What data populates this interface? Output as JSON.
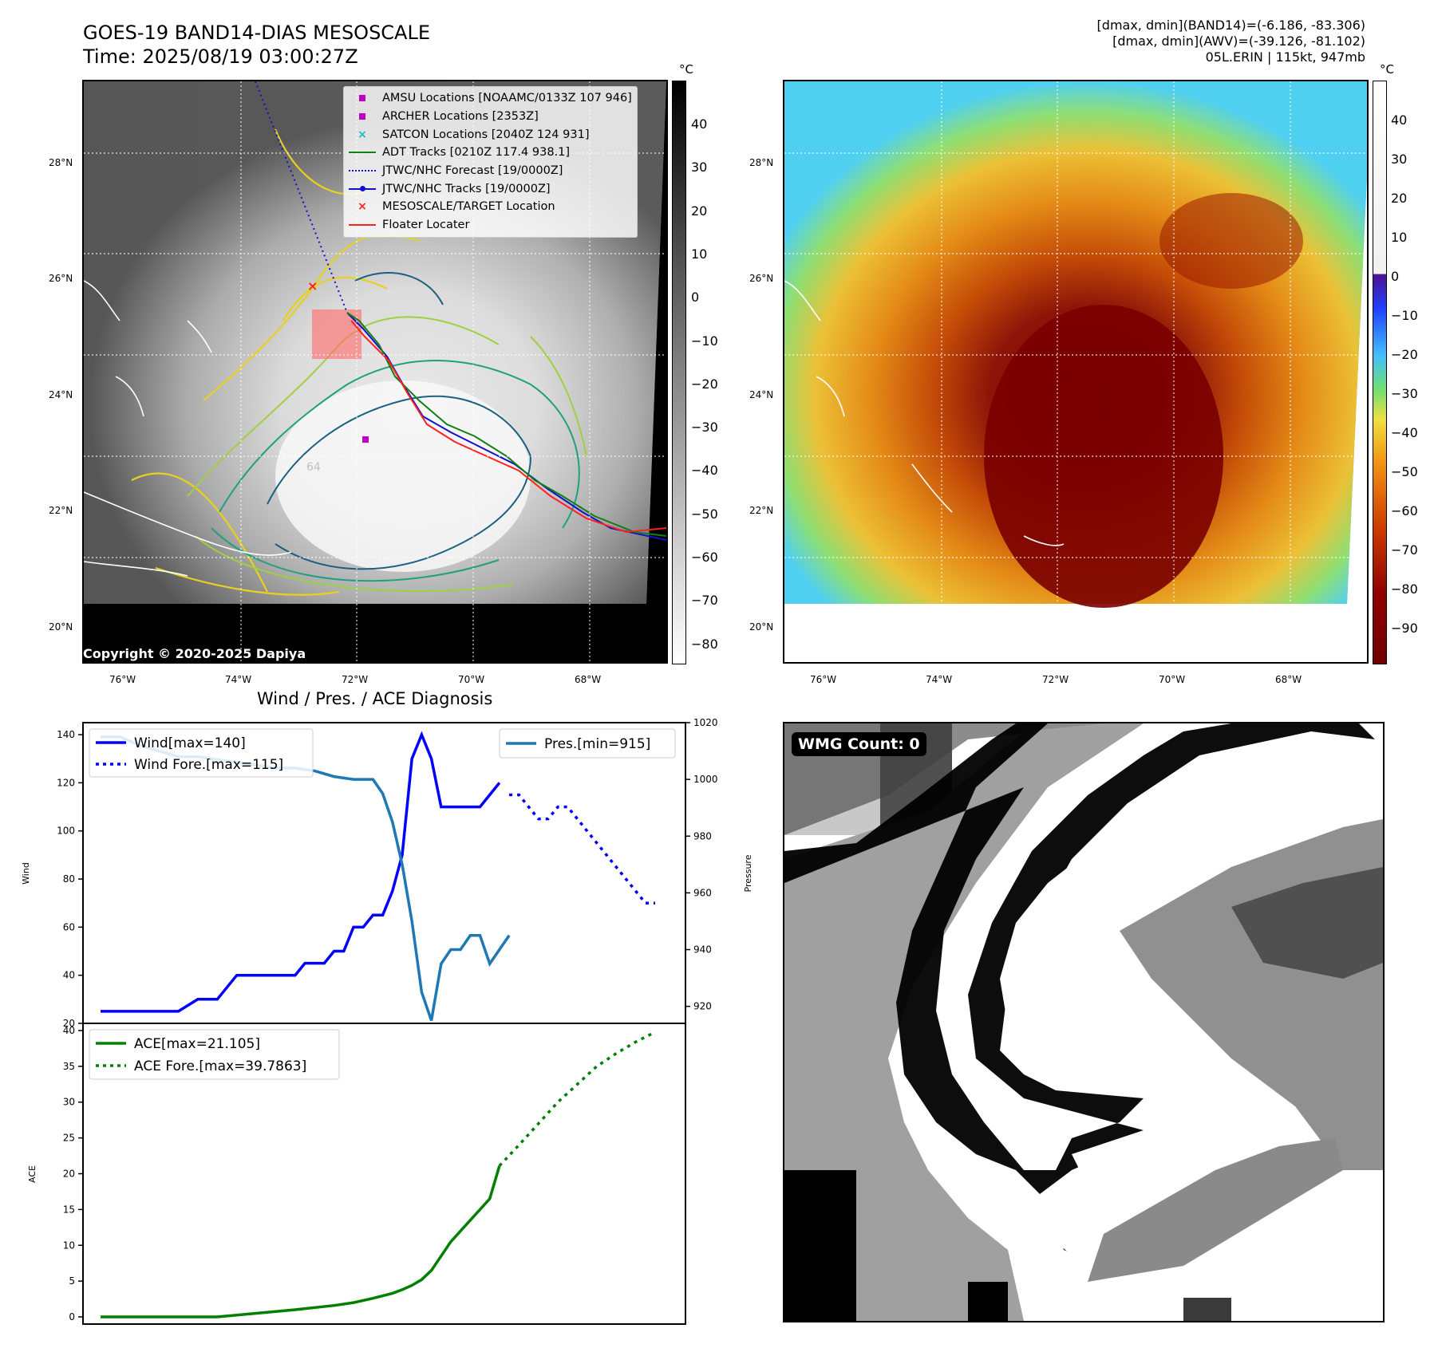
{
  "header": {
    "title_line1": "GOES-19 BAND14-DIAS MESOSCALE",
    "title_line2": "Time: 2025/08/19 03:00:27Z",
    "stats_line1": "[dmax, dmin](BAND14)=(-6.186, -83.306)",
    "stats_line2": "[dmax, dmin](AWV)=(-39.126, -81.102)",
    "stats_line3": "05L.ERIN | 115kt, 947mb"
  },
  "map": {
    "lat_labels": [
      "28°N",
      "26°N",
      "24°N",
      "22°N",
      "20°N"
    ],
    "lon_labels": [
      "76°W",
      "74°W",
      "72°W",
      "70°W",
      "68°W"
    ],
    "copyright": "Copyright © 2020-2025 Dapiya",
    "colorbar_unit": "°C",
    "gray_colorbar_ticks": [
      "40",
      "30",
      "20",
      "10",
      "0",
      "−10",
      "−20",
      "−30",
      "−40",
      "−50",
      "−60",
      "−70",
      "−80"
    ],
    "color_colorbar_ticks": [
      "40",
      "30",
      "20",
      "10",
      "0",
      "−10",
      "−20",
      "−30",
      "−40",
      "−50",
      "−60",
      "−70",
      "−80",
      "−90"
    ],
    "legend": [
      {
        "label": "AMSU Locations [NOAAMC/0133Z 107 946]",
        "symbol": "square",
        "color": "#c000c0"
      },
      {
        "label": "ARCHER Locations [2353Z]",
        "symbol": "square",
        "color": "#c000c0"
      },
      {
        "label": "SATCON Locations [2040Z 124 931]",
        "symbol": "x",
        "color": "#10c0c0"
      },
      {
        "label": "ADT Tracks [0210Z 117.4 938.1]",
        "symbol": "line",
        "color": "#108010"
      },
      {
        "label": "JTWC/NHC Forecast [19/0000Z]",
        "symbol": "dotted",
        "color": "#1010d0"
      },
      {
        "label": "JTWC/NHC Tracks [19/0000Z]",
        "symbol": "line-dot",
        "color": "#1010d0"
      },
      {
        "label": "MESOSCALE/TARGET Location",
        "symbol": "x",
        "color": "#ff2020"
      },
      {
        "label": "Floater Locater",
        "symbol": "line",
        "color": "#ff2020"
      }
    ],
    "contour_label": "64"
  },
  "diagnosis": {
    "title": "Wind / Pres. / ACE Diagnosis",
    "wind_ylabel": "Wind",
    "pres_ylabel": "Pressure",
    "ace_ylabel": "ACE",
    "wind_legend": "Wind[max=140]",
    "wind_fore_legend": "Wind Fore.[max=115]",
    "pres_legend": "Pres.[min=915]",
    "ace_legend": "ACE[max=21.105]",
    "ace_fore_legend": "ACE Fore.[max=39.7863]",
    "wmg": "WMG Count: 0"
  },
  "chart_data": [
    {
      "type": "line",
      "title": "Wind / Pres. / ACE Diagnosis",
      "ylabel": "Wind",
      "y2label": "Pressure",
      "ylim": [
        20,
        145
      ],
      "y2lim": [
        914,
        1020
      ],
      "series": [
        {
          "name": "Wind[max=140]",
          "color": "#0000ff",
          "style": "solid",
          "x": [
            0,
            2,
            4,
            6,
            8,
            10,
            12,
            14,
            16,
            18,
            19,
            20,
            21,
            22,
            23,
            24,
            25,
            26,
            27,
            28,
            29,
            30,
            31,
            32,
            33,
            34,
            35,
            37,
            39,
            40,
            41
          ],
          "values": [
            25,
            25,
            25,
            25,
            25,
            30,
            30,
            40,
            40,
            40,
            40,
            40,
            45,
            45,
            45,
            50,
            50,
            60,
            60,
            65,
            65,
            75,
            90,
            130,
            140,
            130,
            110,
            110,
            110,
            115,
            120
          ]
        },
        {
          "name": "Wind Fore.[max=115]",
          "color": "#0000ff",
          "style": "dotted",
          "x": [
            42,
            43,
            44,
            45,
            46,
            47,
            48,
            49,
            50,
            51,
            52,
            53,
            54,
            55,
            56,
            57
          ],
          "values": [
            115,
            115,
            110,
            105,
            105,
            110,
            110,
            105,
            100,
            95,
            90,
            85,
            80,
            75,
            70,
            70
          ]
        },
        {
          "name": "Pres.[min=915]",
          "color": "#1f77b4",
          "style": "solid",
          "axis": "right",
          "x": [
            0,
            2,
            4,
            6,
            8,
            10,
            12,
            14,
            16,
            18,
            20,
            22,
            24,
            26,
            28,
            29,
            30,
            31,
            32,
            33,
            34,
            35,
            36,
            37,
            38,
            39,
            40,
            41,
            42
          ],
          "values": [
            1015,
            1015,
            1012,
            1010,
            1008,
            1008,
            1007,
            1006,
            1005,
            1004,
            1004,
            1003,
            1001,
            1000,
            1000,
            995,
            985,
            970,
            950,
            925,
            915,
            935,
            940,
            940,
            945,
            945,
            935,
            940,
            945
          ]
        }
      ]
    },
    {
      "type": "line",
      "ylabel": "ACE",
      "ylim": [
        -1,
        41
      ],
      "yticks": [
        0,
        5,
        10,
        15,
        20,
        25,
        30,
        35,
        40
      ],
      "series": [
        {
          "name": "ACE[max=21.105]",
          "color": "#008000",
          "style": "solid",
          "x": [
            0,
            4,
            8,
            12,
            16,
            20,
            24,
            26,
            28,
            30,
            31,
            32,
            33,
            34,
            35,
            36,
            37,
            38,
            39,
            40,
            41
          ],
          "values": [
            0,
            0,
            0,
            0,
            0.5,
            1,
            1.6,
            2,
            2.6,
            3.3,
            3.8,
            4.4,
            5.2,
            6.5,
            8.5,
            10.5,
            12,
            13.5,
            15,
            16.5,
            21.105
          ]
        },
        {
          "name": "ACE Fore.[max=39.7863]",
          "color": "#008000",
          "style": "dotted",
          "x": [
            41,
            43,
            45,
            47,
            49,
            51,
            53,
            55,
            57
          ],
          "values": [
            21.105,
            24,
            27,
            30,
            32.5,
            35,
            36.8,
            38.4,
            39.7863
          ]
        }
      ]
    }
  ]
}
